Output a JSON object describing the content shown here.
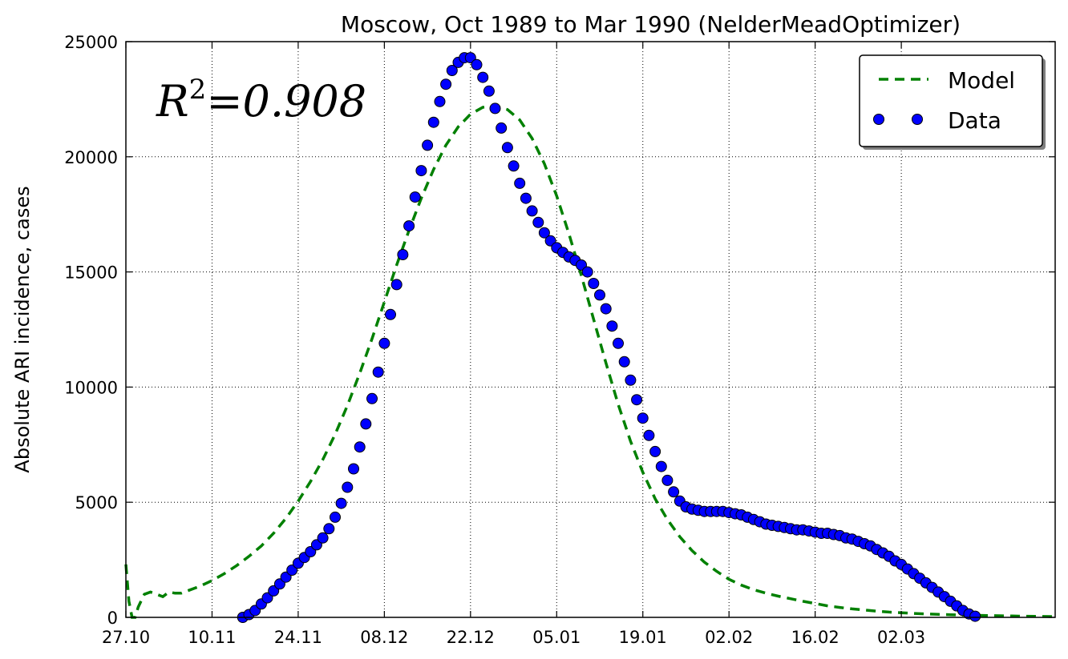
{
  "chart_data": {
    "type": "line",
    "title": "Moscow, Oct 1989 to Mar 1990 (NelderMeadOptimizer)",
    "xlabel": "",
    "ylabel": "Absolute ARI incidence, cases",
    "annotation": {
      "r2_label": "R",
      "r2_power": "2",
      "r2_value": "=0.908"
    },
    "xlim": [
      0,
      151
    ],
    "ylim": [
      0,
      25000
    ],
    "x_ticks": [
      {
        "pos": 0,
        "label": "27.10"
      },
      {
        "pos": 14,
        "label": "10.11"
      },
      {
        "pos": 28,
        "label": "24.11"
      },
      {
        "pos": 42,
        "label": "08.12"
      },
      {
        "pos": 56,
        "label": "22.12"
      },
      {
        "pos": 70,
        "label": "05.01"
      },
      {
        "pos": 84,
        "label": "19.01"
      },
      {
        "pos": 98,
        "label": "02.02"
      },
      {
        "pos": 112,
        "label": "16.02"
      },
      {
        "pos": 126,
        "label": "02.03"
      }
    ],
    "y_ticks": [
      0,
      5000,
      10000,
      15000,
      20000,
      25000
    ],
    "grid": true,
    "legend": {
      "position": "top-right",
      "entries": [
        "Model",
        "Data"
      ]
    },
    "series": [
      {
        "name": "Model",
        "style": "dashed",
        "color": "#008000",
        "points": [
          [
            0,
            2300
          ],
          [
            0.5,
            700
          ],
          [
            1,
            0
          ],
          [
            1.5,
            0
          ],
          [
            2,
            450
          ],
          [
            3,
            1000
          ],
          [
            4,
            1100
          ],
          [
            5,
            1000
          ],
          [
            6,
            900
          ],
          [
            7,
            1100
          ],
          [
            8,
            1050
          ],
          [
            9,
            1050
          ],
          [
            10,
            1150
          ],
          [
            12,
            1350
          ],
          [
            14,
            1600
          ],
          [
            16,
            1900
          ],
          [
            18,
            2250
          ],
          [
            20,
            2650
          ],
          [
            22,
            3100
          ],
          [
            24,
            3650
          ],
          [
            26,
            4300
          ],
          [
            28,
            5050
          ],
          [
            30,
            5900
          ],
          [
            32,
            6850
          ],
          [
            34,
            7950
          ],
          [
            36,
            9200
          ],
          [
            38,
            10600
          ],
          [
            40,
            12100
          ],
          [
            42,
            13700
          ],
          [
            44,
            15300
          ],
          [
            46,
            16800
          ],
          [
            48,
            18200
          ],
          [
            50,
            19450
          ],
          [
            52,
            20500
          ],
          [
            54,
            21300
          ],
          [
            56,
            21850
          ],
          [
            58,
            22150
          ],
          [
            60,
            22200
          ],
          [
            62,
            22050
          ],
          [
            64,
            21600
          ],
          [
            66,
            20800
          ],
          [
            68,
            19700
          ],
          [
            70,
            18300
          ],
          [
            72,
            16650
          ],
          [
            74,
            14850
          ],
          [
            76,
            12950
          ],
          [
            78,
            11050
          ],
          [
            80,
            9250
          ],
          [
            82,
            7650
          ],
          [
            84,
            6300
          ],
          [
            86,
            5150
          ],
          [
            88,
            4250
          ],
          [
            90,
            3500
          ],
          [
            92,
            2900
          ],
          [
            94,
            2400
          ],
          [
            96,
            2000
          ],
          [
            98,
            1650
          ],
          [
            100,
            1400
          ],
          [
            102,
            1200
          ],
          [
            104,
            1050
          ],
          [
            106,
            920
          ],
          [
            108,
            810
          ],
          [
            110,
            700
          ],
          [
            112,
            600
          ],
          [
            114,
            500
          ],
          [
            116,
            430
          ],
          [
            118,
            370
          ],
          [
            120,
            320
          ],
          [
            122,
            270
          ],
          [
            124,
            230
          ],
          [
            126,
            200
          ],
          [
            128,
            170
          ],
          [
            130,
            150
          ],
          [
            132,
            130
          ],
          [
            134,
            115
          ],
          [
            136,
            100
          ],
          [
            138,
            90
          ],
          [
            140,
            80
          ],
          [
            142,
            70
          ],
          [
            144,
            60
          ],
          [
            146,
            50
          ],
          [
            148,
            40
          ],
          [
            151,
            30
          ]
        ]
      },
      {
        "name": "Data",
        "style": "markers",
        "color": "#0000ff",
        "points": [
          [
            19,
            0
          ],
          [
            20,
            120
          ],
          [
            21,
            300
          ],
          [
            22,
            580
          ],
          [
            23,
            850
          ],
          [
            24,
            1150
          ],
          [
            25,
            1450
          ],
          [
            26,
            1750
          ],
          [
            27,
            2050
          ],
          [
            28,
            2350
          ],
          [
            29,
            2600
          ],
          [
            30,
            2850
          ],
          [
            31,
            3150
          ],
          [
            32,
            3450
          ],
          [
            33,
            3850
          ],
          [
            34,
            4350
          ],
          [
            35,
            4950
          ],
          [
            36,
            5650
          ],
          [
            37,
            6450
          ],
          [
            38,
            7400
          ],
          [
            39,
            8400
          ],
          [
            40,
            9500
          ],
          [
            41,
            10650
          ],
          [
            42,
            11900
          ],
          [
            43,
            13150
          ],
          [
            44,
            14450
          ],
          [
            45,
            15750
          ],
          [
            46,
            17000
          ],
          [
            47,
            18250
          ],
          [
            48,
            19400
          ],
          [
            49,
            20500
          ],
          [
            50,
            21500
          ],
          [
            51,
            22400
          ],
          [
            52,
            23150
          ],
          [
            53,
            23750
          ],
          [
            54,
            24100
          ],
          [
            55,
            24300
          ],
          [
            56,
            24300
          ],
          [
            57,
            24000
          ],
          [
            58,
            23450
          ],
          [
            59,
            22850
          ],
          [
            60,
            22100
          ],
          [
            61,
            21250
          ],
          [
            62,
            20400
          ],
          [
            63,
            19600
          ],
          [
            64,
            18850
          ],
          [
            65,
            18200
          ],
          [
            66,
            17650
          ],
          [
            67,
            17150
          ],
          [
            68,
            16700
          ],
          [
            69,
            16350
          ],
          [
            70,
            16050
          ],
          [
            71,
            15850
          ],
          [
            72,
            15650
          ],
          [
            73,
            15500
          ],
          [
            74,
            15300
          ],
          [
            75,
            15000
          ],
          [
            76,
            14500
          ],
          [
            77,
            14000
          ],
          [
            78,
            13400
          ],
          [
            79,
            12650
          ],
          [
            80,
            11900
          ],
          [
            81,
            11100
          ],
          [
            82,
            10300
          ],
          [
            83,
            9450
          ],
          [
            84,
            8650
          ],
          [
            85,
            7900
          ],
          [
            86,
            7200
          ],
          [
            87,
            6550
          ],
          [
            88,
            5950
          ],
          [
            89,
            5450
          ],
          [
            90,
            5050
          ],
          [
            91,
            4800
          ],
          [
            92,
            4700
          ],
          [
            93,
            4650
          ],
          [
            94,
            4600
          ],
          [
            95,
            4600
          ],
          [
            96,
            4600
          ],
          [
            97,
            4600
          ],
          [
            98,
            4550
          ],
          [
            99,
            4500
          ],
          [
            100,
            4450
          ],
          [
            101,
            4350
          ],
          [
            102,
            4250
          ],
          [
            103,
            4150
          ],
          [
            104,
            4050
          ],
          [
            105,
            4000
          ],
          [
            106,
            3950
          ],
          [
            107,
            3900
          ],
          [
            108,
            3850
          ],
          [
            109,
            3800
          ],
          [
            110,
            3800
          ],
          [
            111,
            3750
          ],
          [
            112,
            3700
          ],
          [
            113,
            3650
          ],
          [
            114,
            3650
          ],
          [
            115,
            3600
          ],
          [
            116,
            3550
          ],
          [
            117,
            3450
          ],
          [
            118,
            3400
          ],
          [
            119,
            3300
          ],
          [
            120,
            3200
          ],
          [
            121,
            3100
          ],
          [
            122,
            2950
          ],
          [
            123,
            2800
          ],
          [
            124,
            2650
          ],
          [
            125,
            2450
          ],
          [
            126,
            2300
          ],
          [
            127,
            2100
          ],
          [
            128,
            1900
          ],
          [
            129,
            1700
          ],
          [
            130,
            1500
          ],
          [
            131,
            1300
          ],
          [
            132,
            1100
          ],
          [
            133,
            900
          ],
          [
            134,
            700
          ],
          [
            135,
            500
          ],
          [
            136,
            300
          ],
          [
            137,
            150
          ],
          [
            138,
            50
          ]
        ]
      }
    ]
  }
}
